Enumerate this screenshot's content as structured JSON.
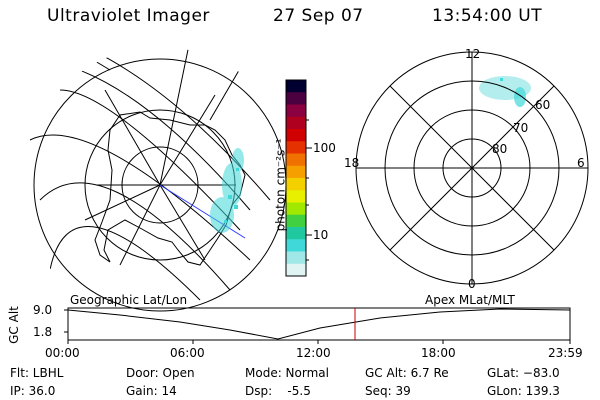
{
  "header": {
    "instrument": "Ultraviolet Imager",
    "date": "27 Sep 07",
    "time": "13:54:00 UT"
  },
  "colorbar": {
    "unit_label": "photon cm⁻²s⁻¹",
    "ticks": [
      "100",
      "10"
    ],
    "colors": [
      "#000030",
      "#4b0040",
      "#8a0040",
      "#b00020",
      "#d10000",
      "#e53000",
      "#f07000",
      "#f5a000",
      "#f4d000",
      "#e8f000",
      "#a0e800",
      "#40d040",
      "#20c8a0",
      "#40d8d8",
      "#a0e8e8",
      "#e0f4f4"
    ]
  },
  "geo_map": {
    "label": "Geographic Lat/Lon",
    "aurora_color": "#40d8d8"
  },
  "polar_plot": {
    "label": "Apex MLat/MLT",
    "mlt_labels": {
      "top": "12",
      "bottom": "0",
      "left": "18",
      "right": "6"
    },
    "lat_labels": [
      "60",
      "70",
      "80"
    ],
    "aurora_color": "#a0e8e8"
  },
  "altitude_plot": {
    "ylabel": "GC Alt",
    "y_ticks": [
      "9.0",
      "1.8"
    ],
    "x_ticks": [
      "00:00",
      "06:00",
      "12:00",
      "18:00",
      "23:59"
    ],
    "marker_color": "#cc0000"
  },
  "status": {
    "flt": "Flt: LBHL",
    "ip": "IP: 36.0",
    "door": "Door: Open",
    "gain": "Gain: 14",
    "mode": "Mode: Normal",
    "dsp": "Dsp:    -5.5",
    "gc_alt": "GC Alt: 6.7 Re",
    "seq": "Seq: 39",
    "glat": "GLat: −83.0",
    "glon": "GLon: 139.3"
  }
}
